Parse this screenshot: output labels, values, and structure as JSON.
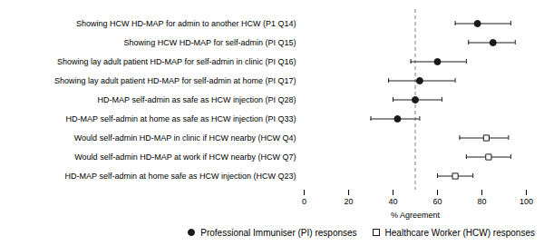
{
  "chart_data": {
    "type": "errorbar",
    "orientation": "horizontal",
    "xlabel": "% Agreement",
    "categories": [
      "Showing HCW HD-MAP for admin to another HCW (P1 Q14)",
      "Showing HCW HD-MAP for self-admin (PI Q15)",
      "Showing lay adult patient HD-MAP for self-admin in clinic (PI Q16)",
      "Showing lay adult patient HD-MAP for self-admin at home (PI Q17)",
      "HD-MAP self-admin as safe as HCW injection (PI Q28)",
      "HD-MAP self-admin at home as safe as HCW injection (PI Q33)",
      "Would self-admin HD-MAP in clinic if HCW nearby (HCW Q4)",
      "Would self-admin HD-MAP at work if HCW nearby (HCW Q7)",
      "HD-MAP self-admin at home safe as HCW injection (HCW Q23)"
    ],
    "series": [
      {
        "name": "Professional Immuniser (PI) responses",
        "color": "#1a1a1a",
        "marker": "circle",
        "values": [
          78,
          85,
          60,
          52,
          50,
          42,
          null,
          null,
          null
        ],
        "ci_low": [
          68,
          74,
          48,
          38,
          40,
          30,
          null,
          null,
          null
        ],
        "ci_high": [
          93,
          95,
          73,
          68,
          62,
          52,
          null,
          null,
          null
        ]
      },
      {
        "name": "Healthcare Worker (HCW) responses",
        "color": "#1a1a1a",
        "marker": "square_open",
        "values": [
          null,
          null,
          null,
          null,
          null,
          null,
          82,
          83,
          68
        ],
        "ci_low": [
          null,
          null,
          null,
          null,
          null,
          null,
          70,
          73,
          60
        ],
        "ci_high": [
          null,
          null,
          null,
          null,
          null,
          null,
          92,
          93,
          76
        ]
      }
    ],
    "xlim": [
      0,
      100
    ],
    "xticks": [
      0,
      20,
      40,
      60,
      80,
      100
    ],
    "vline": 50,
    "grid": false,
    "legend": "lower right"
  }
}
